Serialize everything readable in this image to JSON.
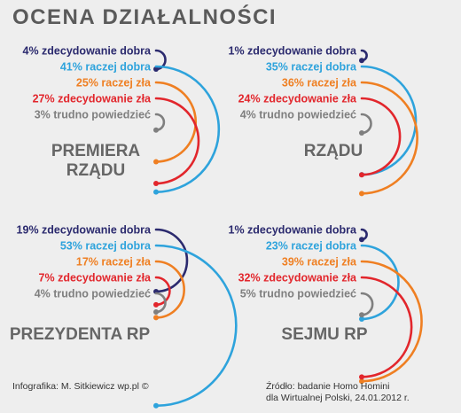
{
  "title": "OCENA DZIAŁALNOŚCI",
  "footer": {
    "credit": "Infografika: M. Sitkiewicz wp.pl ©",
    "source_line1": "Źródło: badanie Homo Homini",
    "source_line2": "dla Wirtualnej Polski, 24.01.2012 r."
  },
  "colors": {
    "zdecydowanie_dobra": "#2b2a6e",
    "raczej_dobra": "#2ea3dc",
    "raczej_zla": "#ef7f22",
    "zdecydowanie_zla": "#e2262c",
    "trudno_powiedziec": "#7f7f7f"
  },
  "chart_data": [
    {
      "type": "radial-bar",
      "title": "PREMIERA RZĄDU",
      "title_lines": [
        "PREMIERA",
        "RZĄDU"
      ],
      "series": [
        {
          "label": "zdecydowanie dobra",
          "value": 4,
          "color": "#2b2a6e"
        },
        {
          "label": "raczej dobra",
          "value": 41,
          "color": "#2ea3dc"
        },
        {
          "label": "raczej zła",
          "value": 25,
          "color": "#ef7f22"
        },
        {
          "label": "zdecydowanie zła",
          "value": 27,
          "color": "#e2262c"
        },
        {
          "label": "trudno powiedzieć",
          "value": 3,
          "color": "#7f7f7f"
        }
      ]
    },
    {
      "type": "radial-bar",
      "title": "RZĄDU",
      "title_lines": [
        "RZĄDU"
      ],
      "series": [
        {
          "label": "zdecydowanie dobra",
          "value": 1,
          "color": "#2b2a6e"
        },
        {
          "label": "raczej dobra",
          "value": 35,
          "color": "#2ea3dc"
        },
        {
          "label": "raczej zła",
          "value": 36,
          "color": "#ef7f22"
        },
        {
          "label": "zdecydowanie zła",
          "value": 24,
          "color": "#e2262c"
        },
        {
          "label": "trudno powiedzieć",
          "value": 4,
          "color": "#7f7f7f"
        }
      ]
    },
    {
      "type": "radial-bar",
      "title": "PREZYDENTA RP",
      "title_lines": [
        "PREZYDENTA RP"
      ],
      "series": [
        {
          "label": "zdecydowanie dobra",
          "value": 19,
          "color": "#2b2a6e"
        },
        {
          "label": "raczej dobra",
          "value": 53,
          "color": "#2ea3dc"
        },
        {
          "label": "raczej zła",
          "value": 17,
          "color": "#ef7f22"
        },
        {
          "label": "zdecydowanie zła",
          "value": 7,
          "color": "#e2262c"
        },
        {
          "label": "trudno powiedzieć",
          "value": 4,
          "color": "#7f7f7f"
        }
      ]
    },
    {
      "type": "radial-bar",
      "title": "SEJMU RP",
      "title_lines": [
        "SEJMU RP"
      ],
      "series": [
        {
          "label": "zdecydowanie dobra",
          "value": 1,
          "color": "#2b2a6e"
        },
        {
          "label": "raczej dobra",
          "value": 23,
          "color": "#2ea3dc"
        },
        {
          "label": "raczej zła",
          "value": 39,
          "color": "#ef7f22"
        },
        {
          "label": "zdecydowanie zła",
          "value": 32,
          "color": "#e2262c"
        },
        {
          "label": "trudno powiedzieć",
          "value": 5,
          "color": "#7f7f7f"
        }
      ]
    }
  ]
}
